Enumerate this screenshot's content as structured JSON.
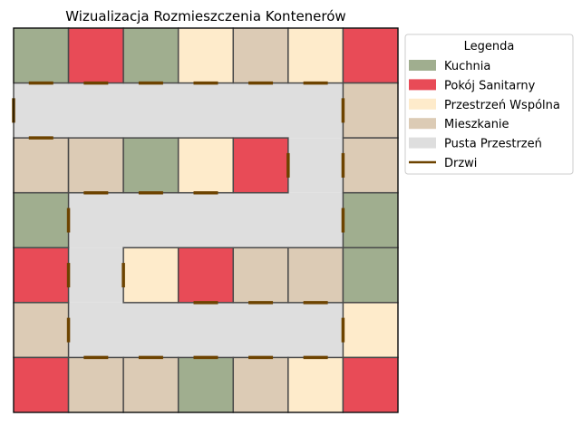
{
  "title": "Wizualizacja Rozmieszczenia Kontenerów",
  "colors": {
    "K": "#a0ae8f",
    "S": "#e84b57",
    "P": "#feebcb",
    "M": "#dccbb5",
    "E": "#dedede",
    "door": "#6d4300",
    "wall": "#4a4a4a"
  },
  "legend": {
    "title": "Legenda",
    "items": [
      {
        "key": "K",
        "label": "Kuchnia",
        "kind": "patch"
      },
      {
        "key": "S",
        "label": "Pokój Sanitarny",
        "kind": "patch"
      },
      {
        "key": "P",
        "label": "Przestrzeń Wspólna",
        "kind": "patch"
      },
      {
        "key": "M",
        "label": "Mieszkanie",
        "kind": "patch"
      },
      {
        "key": "E",
        "label": "Pusta Przestrzeń",
        "kind": "patch"
      },
      {
        "key": "door",
        "label": "Drzwi",
        "kind": "line"
      }
    ]
  },
  "grid": {
    "cols": 7,
    "rows": 7,
    "cells": [
      [
        "K",
        "S",
        "K",
        "P",
        "M",
        "P",
        "S"
      ],
      [
        null,
        null,
        null,
        null,
        null,
        null,
        "M"
      ],
      [
        "M",
        "M",
        "K",
        "P",
        "S",
        null,
        "M"
      ],
      [
        "K",
        null,
        null,
        null,
        null,
        null,
        "K"
      ],
      [
        "S",
        null,
        "P",
        "S",
        "M",
        "M",
        "K"
      ],
      [
        "M",
        null,
        null,
        null,
        null,
        null,
        "P"
      ],
      [
        "S",
        "M",
        "M",
        "K",
        "M",
        "P",
        "S"
      ]
    ],
    "corridors": [
      {
        "col": 0,
        "row": 1,
        "w": 6,
        "h": 1
      },
      {
        "col": 5,
        "row": 2,
        "w": 1,
        "h": 1
      },
      {
        "col": 1,
        "row": 3,
        "w": 5,
        "h": 1
      },
      {
        "col": 1,
        "row": 4,
        "w": 1,
        "h": 1
      },
      {
        "col": 1,
        "row": 5,
        "w": 5,
        "h": 1
      }
    ],
    "doors": [
      {
        "o": "h",
        "x": 0.5,
        "y": 1
      },
      {
        "o": "h",
        "x": 1.5,
        "y": 1
      },
      {
        "o": "h",
        "x": 2.5,
        "y": 1
      },
      {
        "o": "h",
        "x": 3.5,
        "y": 1
      },
      {
        "o": "h",
        "x": 4.5,
        "y": 1
      },
      {
        "o": "h",
        "x": 5.5,
        "y": 1
      },
      {
        "o": "v",
        "x": 0,
        "y": 1.5
      },
      {
        "o": "v",
        "x": 6,
        "y": 1.5
      },
      {
        "o": "h",
        "x": 0.5,
        "y": 2
      },
      {
        "o": "v",
        "x": 5,
        "y": 2.5
      },
      {
        "o": "v",
        "x": 6,
        "y": 2.5
      },
      {
        "o": "h",
        "x": 1.5,
        "y": 3
      },
      {
        "o": "h",
        "x": 2.5,
        "y": 3
      },
      {
        "o": "h",
        "x": 3.5,
        "y": 3
      },
      {
        "o": "v",
        "x": 1,
        "y": 3.5
      },
      {
        "o": "v",
        "x": 6,
        "y": 3.5
      },
      {
        "o": "v",
        "x": 1,
        "y": 4.5
      },
      {
        "o": "v",
        "x": 2,
        "y": 4.5
      },
      {
        "o": "h",
        "x": 3.5,
        "y": 5
      },
      {
        "o": "h",
        "x": 4.5,
        "y": 5
      },
      {
        "o": "h",
        "x": 5.5,
        "y": 5
      },
      {
        "o": "v",
        "x": 1,
        "y": 5.5
      },
      {
        "o": "v",
        "x": 6,
        "y": 5.5
      },
      {
        "o": "h",
        "x": 1.5,
        "y": 6
      },
      {
        "o": "h",
        "x": 2.5,
        "y": 6
      },
      {
        "o": "h",
        "x": 3.5,
        "y": 6
      },
      {
        "o": "h",
        "x": 4.5,
        "y": 6
      },
      {
        "o": "h",
        "x": 5.5,
        "y": 6
      }
    ]
  }
}
